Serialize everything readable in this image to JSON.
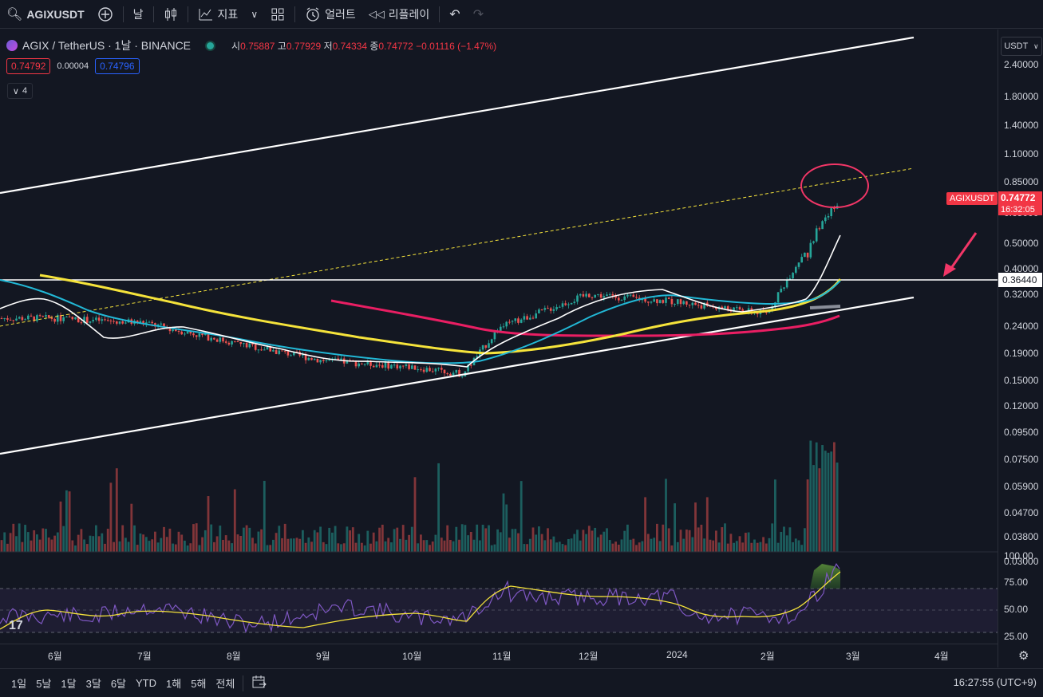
{
  "toolbar": {
    "symbol": "AGIXUSDT",
    "add_icon": "plus-circle-icon",
    "interval": "날",
    "chart_type_icon": "candles-icon",
    "indicators_label": "지표",
    "layouts_icon": "grid-icon",
    "alert_label": "얼러트",
    "replay_label": "리플레이",
    "undo_icon": "undo-icon",
    "redo_icon": "redo-icon"
  },
  "legend": {
    "title": "AGIX / TetherUS · 1날 · BINANCE",
    "open_label": "시",
    "open": "0.75887",
    "high_label": "고",
    "high": "0.77929",
    "low_label": "저",
    "low": "0.74334",
    "close_label": "종",
    "close": "0.74772",
    "change": "−0.01116 (−1.47%)",
    "sell_price": "0.74792",
    "spread": "0.00004",
    "buy_price": "0.74796",
    "collapsed_count": "4"
  },
  "price_axis": {
    "currency": "USDT",
    "labels": [
      "2.40000",
      "1.80000",
      "1.40000",
      "1.10000",
      "0.85000",
      "0.65000",
      "0.50000",
      "0.40000",
      "0.32000",
      "0.24000",
      "0.19000",
      "0.15000",
      "0.12000",
      "0.09500",
      "0.07500",
      "0.05900",
      "0.04700",
      "0.03800",
      "0.03000"
    ],
    "rsi_labels": [
      "100.00",
      "75.00",
      "50.00",
      "25.00"
    ],
    "symbol_tag": "AGIXUSDT",
    "last_price": "0.74772",
    "countdown": "16:32:05",
    "horizontal_line_price": "0.36440"
  },
  "time_axis": {
    "months": [
      "6월",
      "7월",
      "8월",
      "9월",
      "10월",
      "11월",
      "12월",
      "2024",
      "2월",
      "3월",
      "4월"
    ]
  },
  "bottom": {
    "ranges": [
      "1일",
      "5날",
      "1달",
      "3달",
      "6달",
      "YTD",
      "1해",
      "5해",
      "전체"
    ],
    "goto_icon": "calendar-goto-icon",
    "clock": "16:27:55 (UTC+9)"
  },
  "colors": {
    "background": "#131722",
    "up": "#26a69a",
    "down": "#ef5350",
    "ema_yellow": "#f5e33b",
    "ema_cyan": "#22b8d6",
    "ema_pink": "#e91e63",
    "annotation": "#f23667"
  },
  "chart_data": {
    "type": "candlestick",
    "symbol": "AGIX / TetherUS",
    "scale": "log",
    "x_range": [
      "5월 하순",
      "4월"
    ],
    "price_points": [
      {
        "date": "6월",
        "close": 0.26
      },
      {
        "date": "7월",
        "close": 0.25
      },
      {
        "date": "8월",
        "close": 0.21
      },
      {
        "date": "9월",
        "close": 0.18
      },
      {
        "date": "10월",
        "close": 0.17
      },
      {
        "date": "10월 말",
        "close": 0.16
      },
      {
        "date": "11월",
        "close": 0.24
      },
      {
        "date": "12월",
        "close": 0.32
      },
      {
        "date": "2024",
        "close": 0.3
      },
      {
        "date": "2월",
        "close": 0.27
      },
      {
        "date": "2월 말",
        "close": 0.75
      }
    ],
    "rsi": {
      "levels": [
        70,
        50,
        30
      ]
    },
    "horizontal_line": 0.3644
  }
}
